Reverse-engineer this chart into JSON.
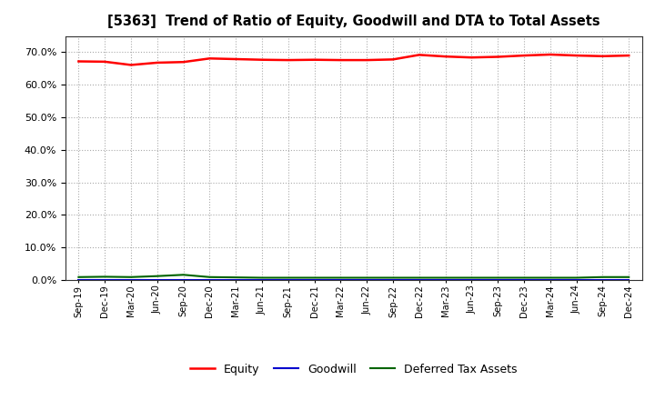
{
  "title": "[5363]  Trend of Ratio of Equity, Goodwill and DTA to Total Assets",
  "x_labels": [
    "Sep-19",
    "Dec-19",
    "Mar-20",
    "Jun-20",
    "Sep-20",
    "Dec-20",
    "Mar-21",
    "Jun-21",
    "Sep-21",
    "Dec-21",
    "Mar-22",
    "Jun-22",
    "Sep-22",
    "Dec-22",
    "Mar-23",
    "Jun-23",
    "Sep-23",
    "Dec-23",
    "Mar-24",
    "Jun-24",
    "Sep-24",
    "Dec-24"
  ],
  "equity": [
    0.672,
    0.671,
    0.661,
    0.668,
    0.67,
    0.681,
    0.679,
    0.677,
    0.676,
    0.677,
    0.676,
    0.676,
    0.678,
    0.692,
    0.687,
    0.684,
    0.686,
    0.69,
    0.693,
    0.69,
    0.688,
    0.69
  ],
  "goodwill": [
    0.0,
    0.0,
    0.0,
    0.0,
    0.0,
    0.0,
    0.0,
    0.0,
    0.0,
    0.0,
    0.0,
    0.0,
    0.0,
    0.0,
    0.0,
    0.0,
    0.0,
    0.0,
    0.0,
    0.0,
    0.0,
    0.0
  ],
  "dta": [
    0.009,
    0.01,
    0.009,
    0.012,
    0.016,
    0.009,
    0.008,
    0.007,
    0.007,
    0.007,
    0.007,
    0.007,
    0.007,
    0.007,
    0.007,
    0.007,
    0.007,
    0.007,
    0.007,
    0.007,
    0.009,
    0.009
  ],
  "equity_color": "#ff0000",
  "goodwill_color": "#0000cd",
  "dta_color": "#006400",
  "ylim": [
    0.0,
    0.75
  ],
  "yticks": [
    0.0,
    0.1,
    0.2,
    0.3,
    0.4,
    0.5,
    0.6,
    0.7
  ],
  "bg_color": "#ffffff",
  "grid_color": "#aaaaaa",
  "legend_labels": [
    "Equity",
    "Goodwill",
    "Deferred Tax Assets"
  ]
}
